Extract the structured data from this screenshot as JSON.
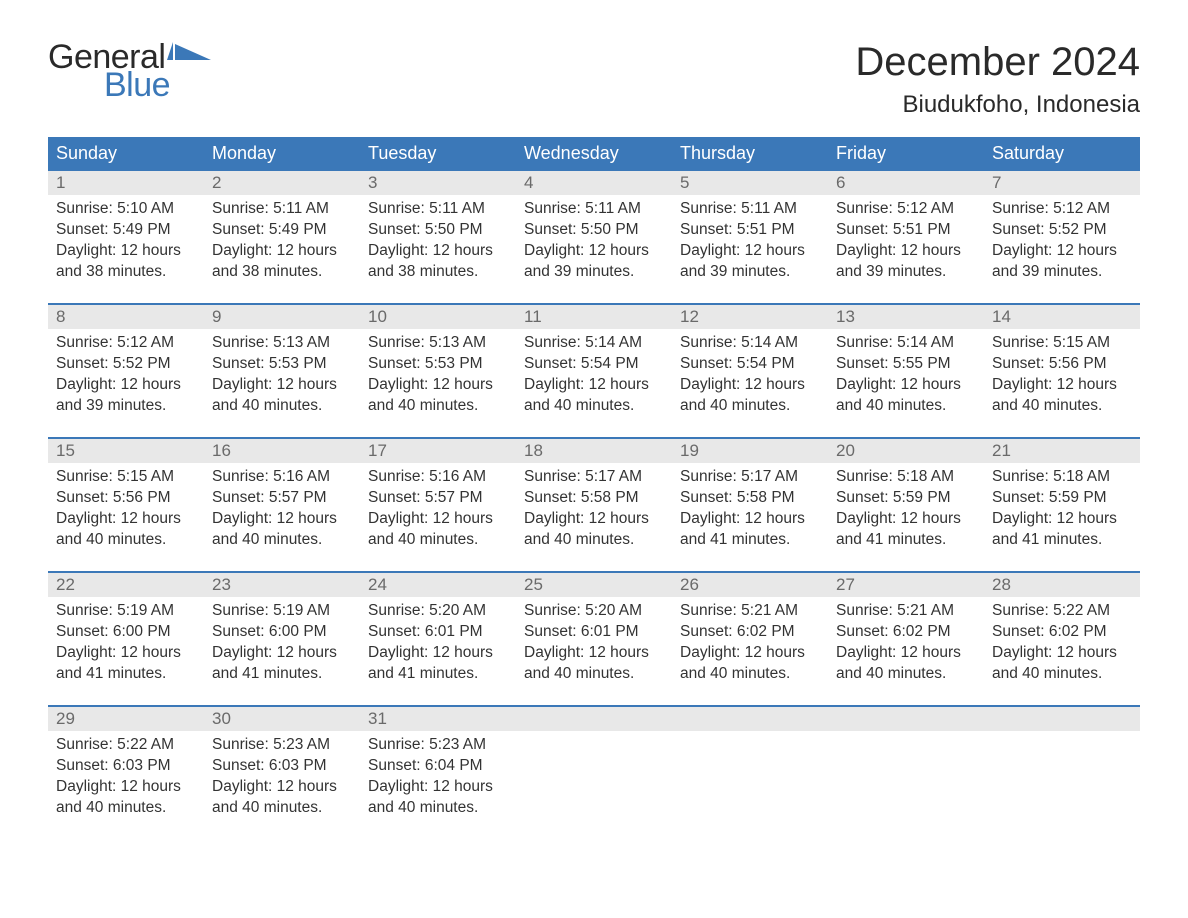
{
  "logo": {
    "text1": "General",
    "text2": "Blue",
    "text1_color": "#2a2a2a",
    "text2_color": "#3b78b8",
    "flag_color": "#3b78b8"
  },
  "title": "December 2024",
  "location": "Biudukfoho, Indonesia",
  "colors": {
    "header_bg": "#3b78b8",
    "header_text": "#ffffff",
    "daynum_bg": "#e8e8e8",
    "daynum_text": "#6a6a6a",
    "body_text": "#333333",
    "row_border": "#3b78b8",
    "background": "#ffffff"
  },
  "typography": {
    "title_fontsize": 40,
    "location_fontsize": 24,
    "weekday_fontsize": 18,
    "daynum_fontsize": 17,
    "content_fontsize": 15.5
  },
  "weekdays": [
    "Sunday",
    "Monday",
    "Tuesday",
    "Wednesday",
    "Thursday",
    "Friday",
    "Saturday"
  ],
  "weeks": [
    [
      {
        "num": "1",
        "sunrise": "Sunrise: 5:10 AM",
        "sunset": "Sunset: 5:49 PM",
        "day1": "Daylight: 12 hours",
        "day2": "and 38 minutes."
      },
      {
        "num": "2",
        "sunrise": "Sunrise: 5:11 AM",
        "sunset": "Sunset: 5:49 PM",
        "day1": "Daylight: 12 hours",
        "day2": "and 38 minutes."
      },
      {
        "num": "3",
        "sunrise": "Sunrise: 5:11 AM",
        "sunset": "Sunset: 5:50 PM",
        "day1": "Daylight: 12 hours",
        "day2": "and 38 minutes."
      },
      {
        "num": "4",
        "sunrise": "Sunrise: 5:11 AM",
        "sunset": "Sunset: 5:50 PM",
        "day1": "Daylight: 12 hours",
        "day2": "and 39 minutes."
      },
      {
        "num": "5",
        "sunrise": "Sunrise: 5:11 AM",
        "sunset": "Sunset: 5:51 PM",
        "day1": "Daylight: 12 hours",
        "day2": "and 39 minutes."
      },
      {
        "num": "6",
        "sunrise": "Sunrise: 5:12 AM",
        "sunset": "Sunset: 5:51 PM",
        "day1": "Daylight: 12 hours",
        "day2": "and 39 minutes."
      },
      {
        "num": "7",
        "sunrise": "Sunrise: 5:12 AM",
        "sunset": "Sunset: 5:52 PM",
        "day1": "Daylight: 12 hours",
        "day2": "and 39 minutes."
      }
    ],
    [
      {
        "num": "8",
        "sunrise": "Sunrise: 5:12 AM",
        "sunset": "Sunset: 5:52 PM",
        "day1": "Daylight: 12 hours",
        "day2": "and 39 minutes."
      },
      {
        "num": "9",
        "sunrise": "Sunrise: 5:13 AM",
        "sunset": "Sunset: 5:53 PM",
        "day1": "Daylight: 12 hours",
        "day2": "and 40 minutes."
      },
      {
        "num": "10",
        "sunrise": "Sunrise: 5:13 AM",
        "sunset": "Sunset: 5:53 PM",
        "day1": "Daylight: 12 hours",
        "day2": "and 40 minutes."
      },
      {
        "num": "11",
        "sunrise": "Sunrise: 5:14 AM",
        "sunset": "Sunset: 5:54 PM",
        "day1": "Daylight: 12 hours",
        "day2": "and 40 minutes."
      },
      {
        "num": "12",
        "sunrise": "Sunrise: 5:14 AM",
        "sunset": "Sunset: 5:54 PM",
        "day1": "Daylight: 12 hours",
        "day2": "and 40 minutes."
      },
      {
        "num": "13",
        "sunrise": "Sunrise: 5:14 AM",
        "sunset": "Sunset: 5:55 PM",
        "day1": "Daylight: 12 hours",
        "day2": "and 40 minutes."
      },
      {
        "num": "14",
        "sunrise": "Sunrise: 5:15 AM",
        "sunset": "Sunset: 5:56 PM",
        "day1": "Daylight: 12 hours",
        "day2": "and 40 minutes."
      }
    ],
    [
      {
        "num": "15",
        "sunrise": "Sunrise: 5:15 AM",
        "sunset": "Sunset: 5:56 PM",
        "day1": "Daylight: 12 hours",
        "day2": "and 40 minutes."
      },
      {
        "num": "16",
        "sunrise": "Sunrise: 5:16 AM",
        "sunset": "Sunset: 5:57 PM",
        "day1": "Daylight: 12 hours",
        "day2": "and 40 minutes."
      },
      {
        "num": "17",
        "sunrise": "Sunrise: 5:16 AM",
        "sunset": "Sunset: 5:57 PM",
        "day1": "Daylight: 12 hours",
        "day2": "and 40 minutes."
      },
      {
        "num": "18",
        "sunrise": "Sunrise: 5:17 AM",
        "sunset": "Sunset: 5:58 PM",
        "day1": "Daylight: 12 hours",
        "day2": "and 40 minutes."
      },
      {
        "num": "19",
        "sunrise": "Sunrise: 5:17 AM",
        "sunset": "Sunset: 5:58 PM",
        "day1": "Daylight: 12 hours",
        "day2": "and 41 minutes."
      },
      {
        "num": "20",
        "sunrise": "Sunrise: 5:18 AM",
        "sunset": "Sunset: 5:59 PM",
        "day1": "Daylight: 12 hours",
        "day2": "and 41 minutes."
      },
      {
        "num": "21",
        "sunrise": "Sunrise: 5:18 AM",
        "sunset": "Sunset: 5:59 PM",
        "day1": "Daylight: 12 hours",
        "day2": "and 41 minutes."
      }
    ],
    [
      {
        "num": "22",
        "sunrise": "Sunrise: 5:19 AM",
        "sunset": "Sunset: 6:00 PM",
        "day1": "Daylight: 12 hours",
        "day2": "and 41 minutes."
      },
      {
        "num": "23",
        "sunrise": "Sunrise: 5:19 AM",
        "sunset": "Sunset: 6:00 PM",
        "day1": "Daylight: 12 hours",
        "day2": "and 41 minutes."
      },
      {
        "num": "24",
        "sunrise": "Sunrise: 5:20 AM",
        "sunset": "Sunset: 6:01 PM",
        "day1": "Daylight: 12 hours",
        "day2": "and 41 minutes."
      },
      {
        "num": "25",
        "sunrise": "Sunrise: 5:20 AM",
        "sunset": "Sunset: 6:01 PM",
        "day1": "Daylight: 12 hours",
        "day2": "and 40 minutes."
      },
      {
        "num": "26",
        "sunrise": "Sunrise: 5:21 AM",
        "sunset": "Sunset: 6:02 PM",
        "day1": "Daylight: 12 hours",
        "day2": "and 40 minutes."
      },
      {
        "num": "27",
        "sunrise": "Sunrise: 5:21 AM",
        "sunset": "Sunset: 6:02 PM",
        "day1": "Daylight: 12 hours",
        "day2": "and 40 minutes."
      },
      {
        "num": "28",
        "sunrise": "Sunrise: 5:22 AM",
        "sunset": "Sunset: 6:02 PM",
        "day1": "Daylight: 12 hours",
        "day2": "and 40 minutes."
      }
    ],
    [
      {
        "num": "29",
        "sunrise": "Sunrise: 5:22 AM",
        "sunset": "Sunset: 6:03 PM",
        "day1": "Daylight: 12 hours",
        "day2": "and 40 minutes."
      },
      {
        "num": "30",
        "sunrise": "Sunrise: 5:23 AM",
        "sunset": "Sunset: 6:03 PM",
        "day1": "Daylight: 12 hours",
        "day2": "and 40 minutes."
      },
      {
        "num": "31",
        "sunrise": "Sunrise: 5:23 AM",
        "sunset": "Sunset: 6:04 PM",
        "day1": "Daylight: 12 hours",
        "day2": "and 40 minutes."
      },
      {
        "empty": true,
        "num": ""
      },
      {
        "empty": true,
        "num": ""
      },
      {
        "empty": true,
        "num": ""
      },
      {
        "empty": true,
        "num": ""
      }
    ]
  ]
}
